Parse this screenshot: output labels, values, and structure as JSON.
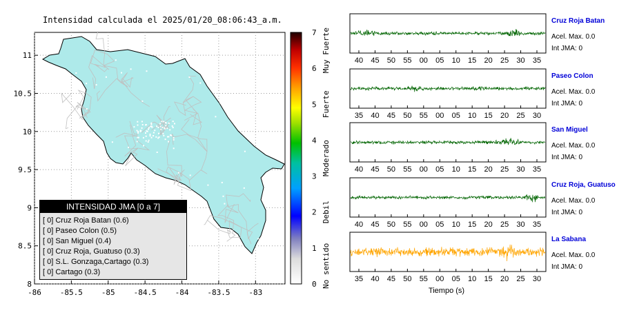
{
  "title": "Intensidad calculada el 2025/01/20_08:06:43_a.m.",
  "map": {
    "x_ticks": [
      "-86",
      "-85.5",
      "-85",
      "-84.5",
      "-84",
      "-83.5",
      "-83"
    ],
    "y_ticks": [
      "11",
      "10.5",
      "10",
      "9.5",
      "9",
      "8.5",
      "8"
    ],
    "land_color": "#aeeaea"
  },
  "colorbar": {
    "ticks": [
      "0",
      "1",
      "2",
      "3",
      "4",
      "5",
      "6",
      "7"
    ],
    "labels": [
      "No sentido",
      "Debil",
      "Moderado",
      "Fuerte",
      "Muy Fuerte"
    ]
  },
  "legend": {
    "title": "INTENSIDAD JMA [0 a 7]",
    "items": [
      "[ 0]  Cruz Roja Batan (0.6)",
      "[ 0]  Paseo Colon (0.5)",
      "[ 0]  San Miguel (0.4)",
      "[ 0]  Cruz Roja, Guatuso (0.3)",
      "[ 0]  S.L. Gonzaga,Cartago (0.3)",
      "[ 0]  Cartago (0.3)"
    ]
  },
  "seismograms": {
    "xlabel": "Tiempo (s)",
    "traces": [
      {
        "name": "Cruz Roja Batan",
        "accel": "Acel. Max. 0.0",
        "int": "Int JMA: 0",
        "color": "#006400",
        "ticks": [
          "40",
          "45",
          "50",
          "55",
          "00",
          "05",
          "10",
          "15",
          "20",
          "25",
          "30",
          "35"
        ]
      },
      {
        "name": "Paseo Colon",
        "accel": "Acel. Max. 0.0",
        "int": "Int JMA: 0",
        "color": "#006400",
        "ticks": [
          "35",
          "40",
          "45",
          "50",
          "55",
          "00",
          "05",
          "10",
          "15",
          "20",
          "25",
          "30"
        ]
      },
      {
        "name": "San Miguel",
        "accel": "Acel. Max. 0.0",
        "int": "Int JMA: 0",
        "color": "#006400",
        "ticks": [
          "40",
          "45",
          "50",
          "55",
          "00",
          "05",
          "10",
          "15",
          "20",
          "25",
          "30",
          "35"
        ]
      },
      {
        "name": "Cruz Roja, Guatuso",
        "accel": "Acel. Max. 0.0",
        "int": "Int JMA: 0",
        "color": "#006400",
        "ticks": [
          "40",
          "45",
          "50",
          "55",
          "00",
          "05",
          "10",
          "15",
          "20",
          "25",
          "30",
          "35"
        ]
      },
      {
        "name": "La Sabana",
        "accel": "Acel. Max. 0.0",
        "int": "Int JMA: 0",
        "color": "#ffa500",
        "ticks": [
          "35",
          "40",
          "45",
          "50",
          "55",
          "00",
          "05",
          "10",
          "15",
          "20",
          "25",
          "30"
        ]
      }
    ]
  },
  "chart_data": [
    {
      "type": "map",
      "title": "Intensidad calculada el 2025/01/20_08:06:43_a.m.",
      "xlim": [
        -86,
        -82.6
      ],
      "ylim": [
        8,
        11.3
      ],
      "legend_title": "INTENSIDAD JMA [0 a 7]",
      "legend_placement": "bottom-left",
      "stations": [
        {
          "name": "Cruz Roja Batan",
          "jma": 0,
          "value": 0.6
        },
        {
          "name": "Paseo Colon",
          "jma": 0,
          "value": 0.5
        },
        {
          "name": "San Miguel",
          "jma": 0,
          "value": 0.4
        },
        {
          "name": "Cruz Roja, Guatuso",
          "jma": 0,
          "value": 0.3
        },
        {
          "name": "S.L. Gonzaga,Cartago",
          "jma": 0,
          "value": 0.3
        },
        {
          "name": "Cartago",
          "jma": 0,
          "value": 0.3
        }
      ]
    },
    {
      "type": "heatmap",
      "role": "colorbar",
      "ylim": [
        0,
        7
      ],
      "labels": [
        "No sentido",
        "Debil",
        "Moderado",
        "Fuerte",
        "Muy Fuerte"
      ]
    },
    {
      "type": "line",
      "role": "seismograms",
      "xlabel": "Tiempo (s)",
      "series": [
        {
          "name": "Cruz Roja Batan",
          "acel_max": 0.0,
          "int_jma": 0
        },
        {
          "name": "Paseo Colon",
          "acel_max": 0.0,
          "int_jma": 0
        },
        {
          "name": "San Miguel",
          "acel_max": 0.0,
          "int_jma": 0
        },
        {
          "name": "Cruz Roja, Guatuso",
          "acel_max": 0.0,
          "int_jma": 0
        },
        {
          "name": "La Sabana",
          "acel_max": 0.0,
          "int_jma": 0
        }
      ]
    }
  ]
}
